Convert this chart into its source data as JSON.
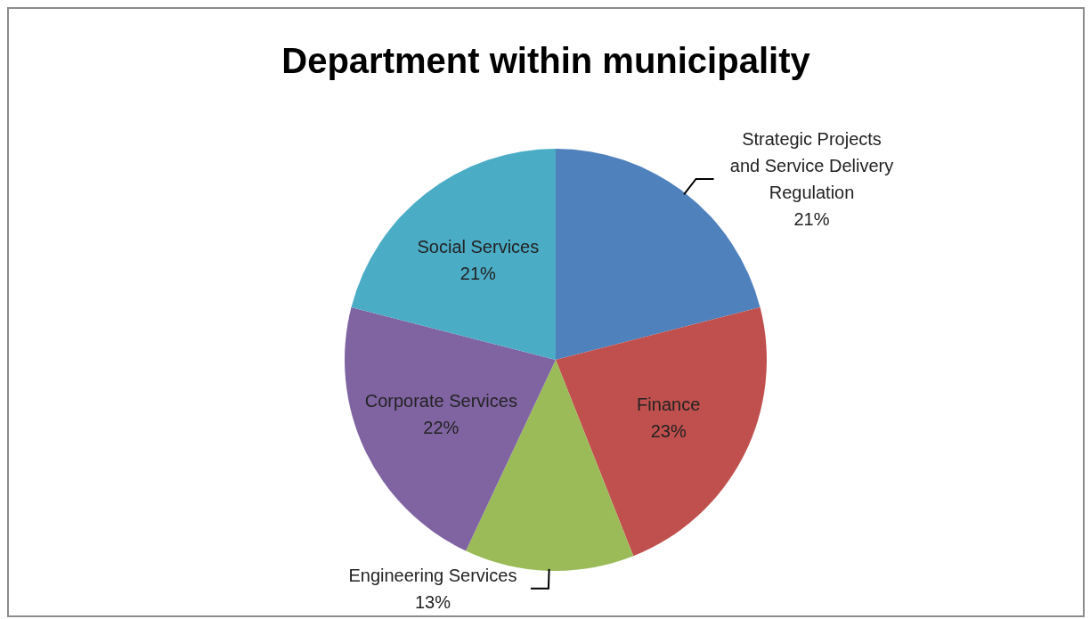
{
  "chart_data": {
    "type": "pie",
    "title": "Department within municipality",
    "categories": [
      "Strategic Projects and Service Delivery Regulation",
      "Finance",
      "Engineering Services",
      "Corporate Services",
      "Social Services"
    ],
    "values": [
      21,
      23,
      13,
      22,
      21
    ],
    "value_labels": [
      "21%",
      "23%",
      "13%",
      "22%",
      "21%"
    ],
    "colors": [
      "#4f81bd",
      "#c0504d",
      "#9bbb59",
      "#8064a2",
      "#4bacc6"
    ],
    "legend": false
  }
}
